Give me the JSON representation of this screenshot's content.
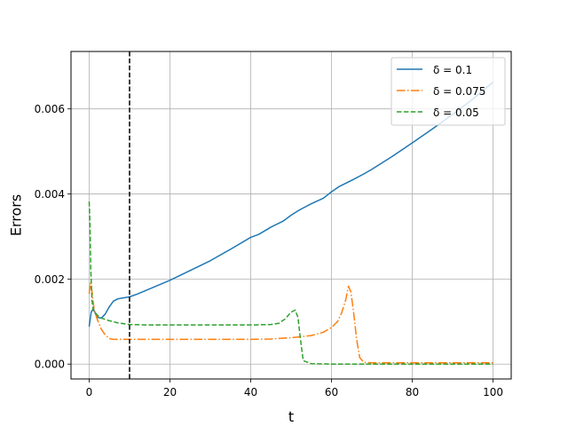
{
  "chart_data": {
    "type": "line",
    "title": "",
    "xlabel": "t",
    "ylabel": "Errors",
    "xlim": [
      -4.5,
      104.5
    ],
    "ylim": [
      -0.00035,
      0.00735
    ],
    "xticks": [
      0,
      20,
      40,
      60,
      80,
      100
    ],
    "xtick_labels": [
      "0",
      "20",
      "40",
      "60",
      "80",
      "100"
    ],
    "yticks": [
      0,
      0.002,
      0.004,
      0.006
    ],
    "ytick_labels": [
      "0.000",
      "0.002",
      "0.004",
      "0.006"
    ],
    "grid": true,
    "legend_position": "top-right",
    "vline": {
      "x": 10,
      "style": "dashed",
      "color": "#000000"
    },
    "series": [
      {
        "name": "δ = 0.1",
        "legend_label": "δ = 0.1",
        "color": "#1f77b4",
        "dash": "solid",
        "points": [
          [
            0,
            0.00088
          ],
          [
            0.5,
            0.00122
          ],
          [
            1,
            0.0013
          ],
          [
            2,
            0.0011
          ],
          [
            3,
            0.00108
          ],
          [
            4,
            0.00118
          ],
          [
            5,
            0.00135
          ],
          [
            6,
            0.00148
          ],
          [
            7,
            0.00153
          ],
          [
            8,
            0.00155
          ],
          [
            10,
            0.00158
          ],
          [
            12,
            0.00165
          ],
          [
            15,
            0.00177
          ],
          [
            20,
            0.00197
          ],
          [
            25,
            0.0022
          ],
          [
            30,
            0.00243
          ],
          [
            35,
            0.0027
          ],
          [
            40,
            0.00298
          ],
          [
            42,
            0.00305
          ],
          [
            45,
            0.00322
          ],
          [
            48,
            0.00336
          ],
          [
            50,
            0.0035
          ],
          [
            52,
            0.00362
          ],
          [
            55,
            0.00377
          ],
          [
            58,
            0.0039
          ],
          [
            60,
            0.00405
          ],
          [
            62,
            0.00418
          ],
          [
            65,
            0.00432
          ],
          [
            68,
            0.00447
          ],
          [
            70,
            0.00458
          ],
          [
            75,
            0.00488
          ],
          [
            80,
            0.0052
          ],
          [
            85,
            0.00553
          ],
          [
            90,
            0.00587
          ],
          [
            95,
            0.00623
          ],
          [
            100,
            0.00663
          ]
        ]
      },
      {
        "name": "δ = 0.075",
        "legend_label": "δ = 0.075",
        "color": "#ff7f0e",
        "dash": "dashdot",
        "points": [
          [
            0,
            0.00165
          ],
          [
            0.3,
            0.0019
          ],
          [
            0.7,
            0.0017
          ],
          [
            1.2,
            0.0013
          ],
          [
            2,
            0.00105
          ],
          [
            3,
            0.00082
          ],
          [
            4,
            0.00068
          ],
          [
            5,
            0.0006
          ],
          [
            6,
            0.00058
          ],
          [
            10,
            0.00058
          ],
          [
            20,
            0.00058
          ],
          [
            30,
            0.00058
          ],
          [
            40,
            0.00058
          ],
          [
            45,
            0.00059
          ],
          [
            50,
            0.00062
          ],
          [
            55,
            0.00067
          ],
          [
            58,
            0.00075
          ],
          [
            60,
            0.00086
          ],
          [
            61.5,
            0.001
          ],
          [
            62.5,
            0.0012
          ],
          [
            63.5,
            0.0015
          ],
          [
            64.2,
            0.00183
          ],
          [
            64.8,
            0.0017
          ],
          [
            65.5,
            0.0012
          ],
          [
            66.2,
            0.0006
          ],
          [
            67,
            0.00015
          ],
          [
            68,
            4e-05
          ],
          [
            70,
            3e-05
          ],
          [
            80,
            3e-05
          ],
          [
            100,
            3e-05
          ]
        ]
      },
      {
        "name": "δ = 0.05",
        "legend_label": "δ = 0.05",
        "color": "#2ca02c",
        "dash": "dashed",
        "points": [
          [
            0,
            0.00382
          ],
          [
            0.2,
            0.0033
          ],
          [
            0.4,
            0.0022
          ],
          [
            0.7,
            0.0015
          ],
          [
            1,
            0.00127
          ],
          [
            2,
            0.00115
          ],
          [
            3,
            0.00108
          ],
          [
            5,
            0.00102
          ],
          [
            7,
            0.00097
          ],
          [
            10,
            0.00093
          ],
          [
            15,
            0.00092
          ],
          [
            20,
            0.00092
          ],
          [
            30,
            0.00092
          ],
          [
            40,
            0.00092
          ],
          [
            45,
            0.00093
          ],
          [
            47,
            0.00096
          ],
          [
            48.5,
            0.00106
          ],
          [
            50,
            0.00122
          ],
          [
            51,
            0.00127
          ],
          [
            51.7,
            0.0011
          ],
          [
            52.3,
            0.0006
          ],
          [
            53,
            8e-05
          ],
          [
            55,
            1e-05
          ],
          [
            60,
            0.0
          ],
          [
            80,
            0.0
          ],
          [
            100,
            0.0
          ]
        ]
      }
    ]
  }
}
